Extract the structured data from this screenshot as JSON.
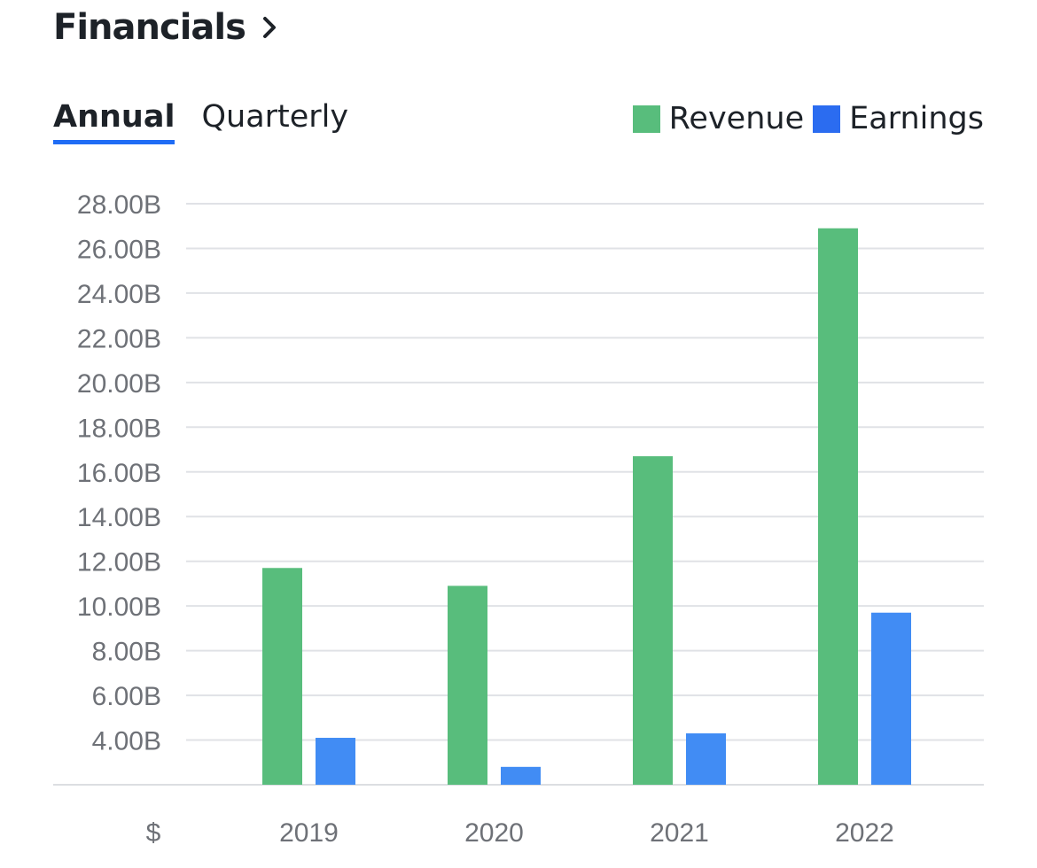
{
  "header": {
    "title": "Financials"
  },
  "tabs": [
    {
      "label": "Annual",
      "active": true
    },
    {
      "label": "Quarterly",
      "active": false
    }
  ],
  "colors": {
    "revenue": "#58bd7c",
    "earnings": "#418cf4",
    "accent": "#1f6cf5",
    "legend_earnings": "#2b6cf0"
  },
  "chart_data": {
    "type": "bar",
    "categories": [
      "2019",
      "2020",
      "2021",
      "2022"
    ],
    "series": [
      {
        "name": "Revenue",
        "values": [
          11.7,
          10.9,
          16.7,
          26.9
        ]
      },
      {
        "name": "Earnings",
        "values": [
          4.1,
          2.8,
          4.3,
          9.7
        ]
      }
    ],
    "yticks": [
      "4.00B",
      "6.00B",
      "8.00B",
      "10.00B",
      "12.00B",
      "14.00B",
      "16.00B",
      "18.00B",
      "20.00B",
      "22.00B",
      "24.00B",
      "26.00B",
      "28.00B"
    ],
    "ylim": [
      2,
      28
    ],
    "currency_label": "$",
    "unit": "B",
    "grid": true,
    "legend_position": "top-right"
  }
}
